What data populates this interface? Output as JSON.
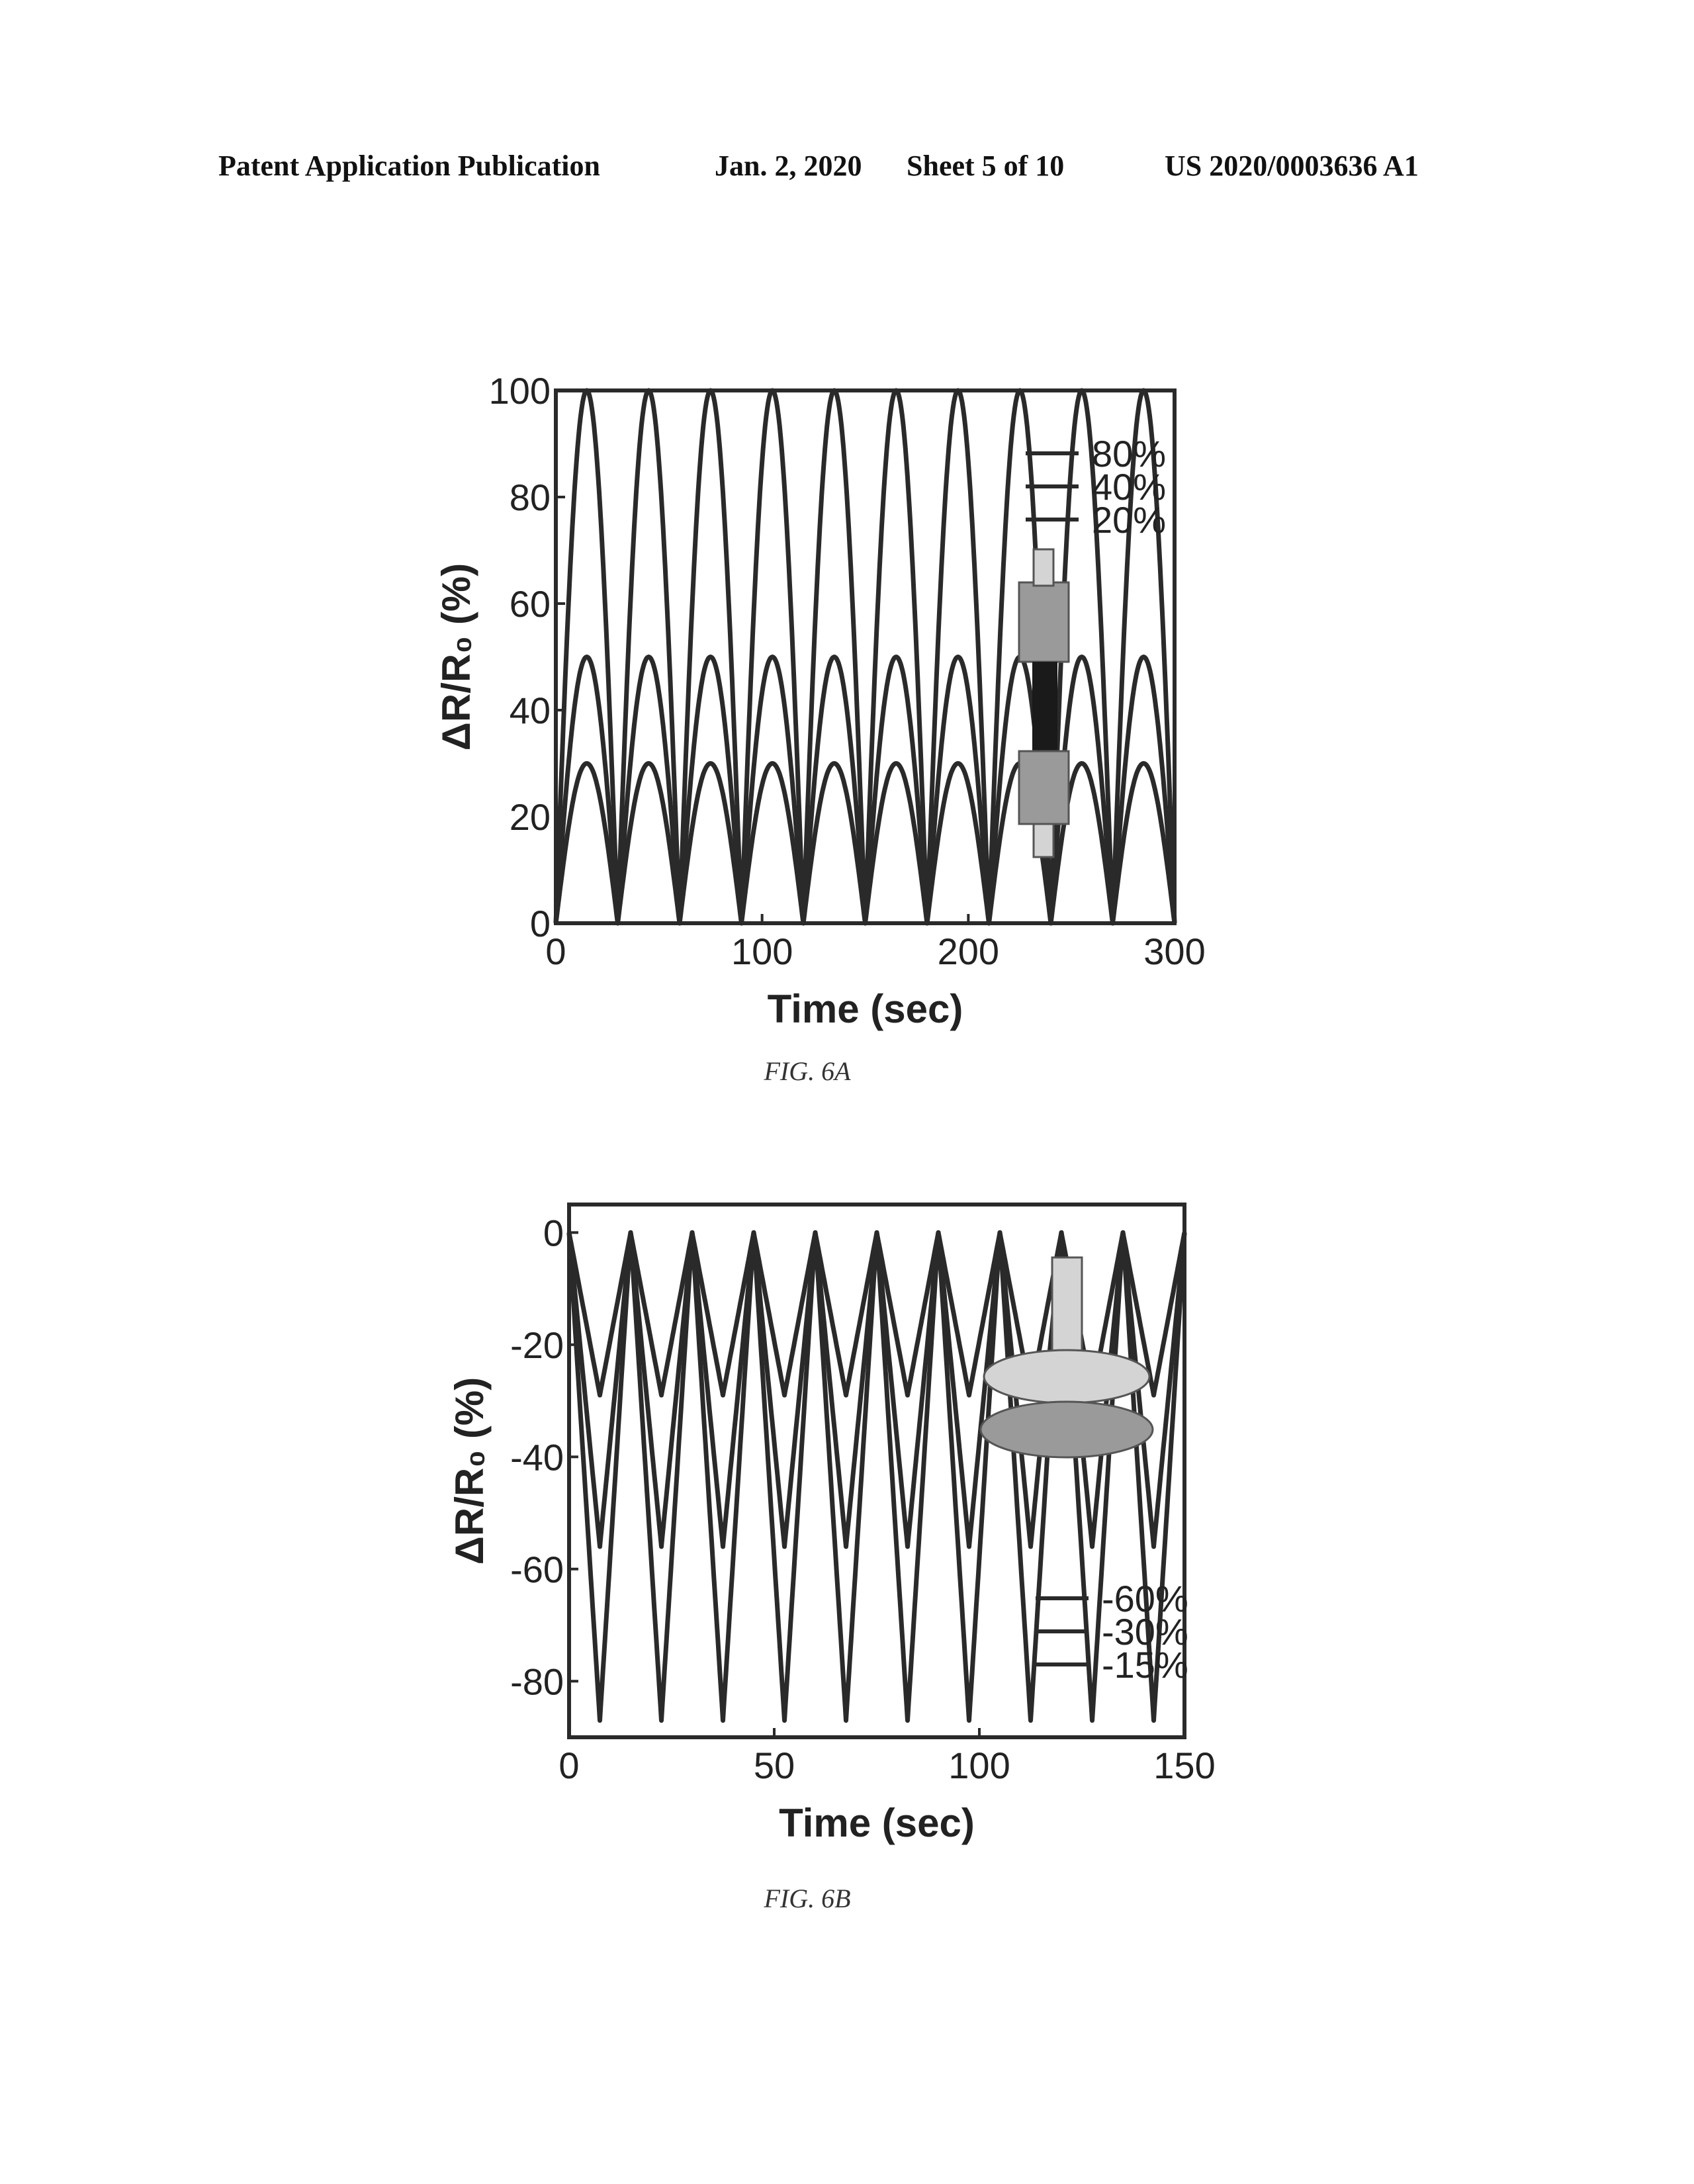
{
  "header": {
    "left": "Patent Application Publication",
    "date": "Jan. 2, 2020",
    "sheet": "Sheet 5 of 10",
    "number": "US 2020/0003636 A1"
  },
  "chart_data": [
    {
      "type": "line",
      "caption": "FIG. 6A",
      "xlabel": "Time (sec)",
      "ylabel": "ΔR/R₀ (%)",
      "xlim": [
        0,
        300
      ],
      "ylim": [
        0,
        100
      ],
      "xticks": [
        0,
        100,
        200,
        300
      ],
      "yticks": [
        0,
        20,
        40,
        60,
        80,
        100
      ],
      "period": 30,
      "series": [
        {
          "name": "80%",
          "amplitude": 100,
          "waveform": "rounded arches, max 100, min 0"
        },
        {
          "name": "40%",
          "amplitude": 50,
          "waveform": "rounded arches, max 50, min 0"
        },
        {
          "name": "20%",
          "amplitude": 30,
          "waveform": "rounded arches, max 30, min 0"
        }
      ],
      "legend_position": "top-right",
      "grid": false
    },
    {
      "type": "line",
      "caption": "FIG. 6B",
      "xlabel": "Time (sec)",
      "ylabel": "ΔR/R₀ (%)",
      "xlim": [
        0,
        150
      ],
      "ylim": [
        -90,
        5
      ],
      "xticks": [
        0,
        50,
        100,
        150
      ],
      "yticks": [
        0,
        -20,
        -40,
        -60,
        -80
      ],
      "period": 15,
      "series": [
        {
          "name": "-60%",
          "min": -87,
          "max": 0,
          "waveform": "triangular"
        },
        {
          "name": "-30%",
          "min": -56,
          "max": 0,
          "waveform": "triangular"
        },
        {
          "name": "-15%",
          "min": -29,
          "max": 0,
          "waveform": "triangular"
        }
      ],
      "legend_position": "bottom-right",
      "grid": false
    }
  ],
  "colors": {
    "ink": "#2a2a2a",
    "inset_dark": "#1a1a1a",
    "inset_mid": "#9a9a9a",
    "inset_light": "#d4d4d4"
  }
}
